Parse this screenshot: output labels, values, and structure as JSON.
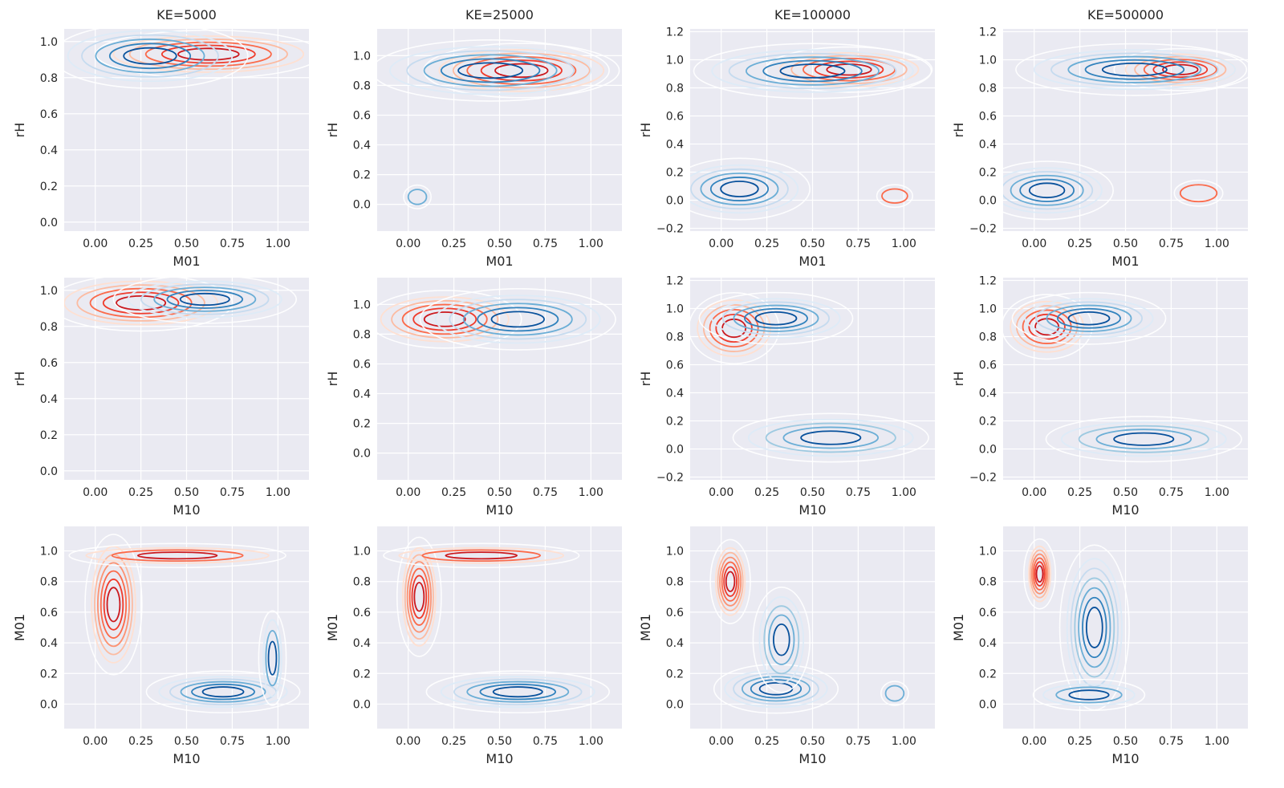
{
  "figure": {
    "facet_titles": [
      "KE=5000",
      "KE=25000",
      "KE=100000",
      "KE=500000"
    ],
    "colors": {
      "background": "#EAEAF2",
      "grid": "#FFFFFF",
      "reds": [
        "#FEE0D2",
        "#FCBBA1",
        "#FC9272",
        "#FB6A4A",
        "#EF3B2C",
        "#CB181D"
      ],
      "blues": [
        "#DEEBF7",
        "#C6DBEF",
        "#9ECAE1",
        "#6BAED6",
        "#3182BD",
        "#08519C"
      ]
    }
  },
  "chart_data": [
    {
      "type": "kde_contour",
      "row": 0,
      "col": 0,
      "title": "KE=5000",
      "xlabel": "M01",
      "ylabel": "rH",
      "xlim": [
        -0.17,
        1.17
      ],
      "ylim": [
        -0.05,
        1.07
      ],
      "xticks": [
        "0.00",
        "0.25",
        "0.50",
        "0.75",
        "1.00"
      ],
      "yticks": [
        "0.0",
        "0.2",
        "0.4",
        "0.6",
        "0.8",
        "1.0"
      ],
      "series": [
        {
          "color": "reds",
          "cx": 0.62,
          "cy": 0.93,
          "rx": 0.52,
          "ry": 0.1,
          "levels": 5
        },
        {
          "color": "blues",
          "cx": 0.3,
          "cy": 0.92,
          "rx": 0.45,
          "ry": 0.14,
          "levels": 5
        }
      ]
    },
    {
      "type": "kde_contour",
      "row": 0,
      "col": 1,
      "title": "KE=25000",
      "xlabel": "M01",
      "ylabel": "rH",
      "xlim": [
        -0.17,
        1.17
      ],
      "ylim": [
        -0.18,
        1.18
      ],
      "xticks": [
        "0.00",
        "0.25",
        "0.50",
        "0.75",
        "1.00"
      ],
      "yticks": [
        "0.0",
        "0.2",
        "0.4",
        "0.6",
        "0.8",
        "1.0"
      ],
      "series": [
        {
          "color": "reds",
          "cx": 0.62,
          "cy": 0.9,
          "rx": 0.45,
          "ry": 0.14,
          "levels": 5
        },
        {
          "color": "blues",
          "cx": 0.45,
          "cy": 0.9,
          "rx": 0.55,
          "ry": 0.16,
          "levels": 5
        },
        {
          "color": "blues",
          "cx": 0.05,
          "cy": 0.05,
          "rx": 0.05,
          "ry": 0.05,
          "levels": 1
        }
      ]
    },
    {
      "type": "kde_contour",
      "row": 0,
      "col": 2,
      "title": "KE=100000",
      "xlabel": "M01",
      "ylabel": "rH",
      "xlim": [
        -0.17,
        1.17
      ],
      "ylim": [
        -0.22,
        1.22
      ],
      "xticks": [
        "0.00",
        "0.25",
        "0.50",
        "0.75",
        "1.00"
      ],
      "yticks": [
        "−0.2",
        "0.0",
        "0.2",
        "0.4",
        "0.6",
        "0.8",
        "1.0",
        "1.2"
      ],
      "series": [
        {
          "color": "reds",
          "cx": 0.7,
          "cy": 0.93,
          "rx": 0.38,
          "ry": 0.12,
          "levels": 5
        },
        {
          "color": "blues",
          "cx": 0.5,
          "cy": 0.92,
          "rx": 0.55,
          "ry": 0.15,
          "levels": 5
        },
        {
          "color": "blues",
          "cx": 0.1,
          "cy": 0.08,
          "rx": 0.32,
          "ry": 0.17,
          "levels": 5
        },
        {
          "color": "reds",
          "cx": 0.95,
          "cy": 0.03,
          "rx": 0.07,
          "ry": 0.05,
          "levels": 1
        }
      ]
    },
    {
      "type": "kde_contour",
      "row": 0,
      "col": 3,
      "title": "KE=500000",
      "xlabel": "M01",
      "ylabel": "rH",
      "xlim": [
        -0.17,
        1.17
      ],
      "ylim": [
        -0.22,
        1.22
      ],
      "xticks": [
        "0.00",
        "0.25",
        "0.50",
        "0.75",
        "1.00"
      ],
      "yticks": [
        "−0.2",
        "0.0",
        "0.2",
        "0.4",
        "0.6",
        "0.8",
        "1.0",
        "1.2"
      ],
      "series": [
        {
          "color": "reds",
          "cx": 0.8,
          "cy": 0.93,
          "rx": 0.3,
          "ry": 0.11,
          "levels": 5
        },
        {
          "color": "blues",
          "cx": 0.55,
          "cy": 0.93,
          "rx": 0.55,
          "ry": 0.14,
          "levels": 5
        },
        {
          "color": "blues",
          "cx": 0.07,
          "cy": 0.07,
          "rx": 0.3,
          "ry": 0.16,
          "levels": 5
        },
        {
          "color": "reds",
          "cx": 0.9,
          "cy": 0.05,
          "rx": 0.1,
          "ry": 0.06,
          "levels": 1
        }
      ]
    },
    {
      "type": "kde_contour",
      "row": 1,
      "col": 0,
      "title": "",
      "xlabel": "M10",
      "ylabel": "rH",
      "xlim": [
        -0.17,
        1.17
      ],
      "ylim": [
        -0.05,
        1.07
      ],
      "xticks": [
        "0.00",
        "0.25",
        "0.50",
        "0.75",
        "1.00"
      ],
      "yticks": [
        "0.0",
        "0.2",
        "0.4",
        "0.6",
        "0.8",
        "1.0"
      ],
      "series": [
        {
          "color": "reds",
          "cx": 0.25,
          "cy": 0.93,
          "rx": 0.42,
          "ry": 0.12,
          "levels": 5
        },
        {
          "color": "blues",
          "cx": 0.6,
          "cy": 0.95,
          "rx": 0.42,
          "ry": 0.1,
          "levels": 5
        }
      ]
    },
    {
      "type": "kde_contour",
      "row": 1,
      "col": 1,
      "title": "",
      "xlabel": "M10",
      "ylabel": "rH",
      "xlim": [
        -0.17,
        1.17
      ],
      "ylim": [
        -0.18,
        1.18
      ],
      "xticks": [
        "0.00",
        "0.25",
        "0.50",
        "0.75",
        "1.00"
      ],
      "yticks": [
        "0.0",
        "0.2",
        "0.4",
        "0.6",
        "0.8",
        "1.0"
      ],
      "series": [
        {
          "color": "reds",
          "cx": 0.2,
          "cy": 0.9,
          "rx": 0.35,
          "ry": 0.15,
          "levels": 5
        },
        {
          "color": "blues",
          "cx": 0.6,
          "cy": 0.9,
          "rx": 0.45,
          "ry": 0.16,
          "levels": 5
        }
      ]
    },
    {
      "type": "kde_contour",
      "row": 1,
      "col": 2,
      "title": "",
      "xlabel": "M10",
      "ylabel": "rH",
      "xlim": [
        -0.17,
        1.17
      ],
      "ylim": [
        -0.22,
        1.22
      ],
      "xticks": [
        "0.00",
        "0.25",
        "0.50",
        "0.75",
        "1.00"
      ],
      "yticks": [
        "−0.2",
        "0.0",
        "0.2",
        "0.4",
        "0.6",
        "0.8",
        "1.0",
        "1.2"
      ],
      "series": [
        {
          "color": "reds",
          "cx": 0.07,
          "cy": 0.86,
          "rx": 0.2,
          "ry": 0.2,
          "levels": 5
        },
        {
          "color": "blues",
          "cx": 0.3,
          "cy": 0.93,
          "rx": 0.35,
          "ry": 0.14,
          "levels": 5
        },
        {
          "color": "blues",
          "cx": 0.6,
          "cy": 0.08,
          "rx": 0.45,
          "ry": 0.13,
          "levels": 4
        }
      ]
    },
    {
      "type": "kde_contour",
      "row": 1,
      "col": 3,
      "title": "",
      "xlabel": "M10",
      "ylabel": "rH",
      "xlim": [
        -0.17,
        1.17
      ],
      "ylim": [
        -0.22,
        1.22
      ],
      "xticks": [
        "0.00",
        "0.25",
        "0.50",
        "0.75",
        "1.00"
      ],
      "yticks": [
        "−0.2",
        "0.0",
        "0.2",
        "0.4",
        "0.6",
        "0.8",
        "1.0",
        "1.2"
      ],
      "series": [
        {
          "color": "reds",
          "cx": 0.07,
          "cy": 0.87,
          "rx": 0.2,
          "ry": 0.18,
          "levels": 5
        },
        {
          "color": "blues",
          "cx": 0.3,
          "cy": 0.93,
          "rx": 0.35,
          "ry": 0.14,
          "levels": 5
        },
        {
          "color": "blues",
          "cx": 0.6,
          "cy": 0.07,
          "rx": 0.45,
          "ry": 0.12,
          "levels": 4
        }
      ]
    },
    {
      "type": "kde_contour",
      "row": 2,
      "col": 0,
      "title": "",
      "xlabel": "M10",
      "ylabel": "M01",
      "xlim": [
        -0.17,
        1.17
      ],
      "ylim": [
        -0.16,
        1.16
      ],
      "xticks": [
        "0.00",
        "0.25",
        "0.50",
        "0.75",
        "1.00"
      ],
      "yticks": [
        "0.0",
        "0.2",
        "0.4",
        "0.6",
        "0.8",
        "1.0"
      ],
      "series": [
        {
          "color": "reds",
          "cx": 0.1,
          "cy": 0.65,
          "rx": 0.12,
          "ry": 0.38,
          "levels": 6
        },
        {
          "color": "reds",
          "cx": 0.45,
          "cy": 0.97,
          "rx": 0.5,
          "ry": 0.05,
          "levels": 3
        },
        {
          "color": "blues",
          "cx": 0.7,
          "cy": 0.08,
          "rx": 0.35,
          "ry": 0.1,
          "levels": 5
        },
        {
          "color": "blues",
          "cx": 0.97,
          "cy": 0.3,
          "rx": 0.05,
          "ry": 0.25,
          "levels": 3
        }
      ]
    },
    {
      "type": "kde_contour",
      "row": 2,
      "col": 1,
      "title": "",
      "xlabel": "M10",
      "ylabel": "M01",
      "xlim": [
        -0.17,
        1.17
      ],
      "ylim": [
        -0.16,
        1.16
      ],
      "xticks": [
        "0.00",
        "0.25",
        "0.50",
        "0.75",
        "1.00"
      ],
      "yticks": [
        "0.0",
        "0.2",
        "0.4",
        "0.6",
        "0.8",
        "1.0"
      ],
      "series": [
        {
          "color": "reds",
          "cx": 0.06,
          "cy": 0.7,
          "rx": 0.09,
          "ry": 0.32,
          "levels": 6
        },
        {
          "color": "reds",
          "cx": 0.4,
          "cy": 0.97,
          "rx": 0.45,
          "ry": 0.05,
          "levels": 3
        },
        {
          "color": "blues",
          "cx": 0.6,
          "cy": 0.08,
          "rx": 0.42,
          "ry": 0.1,
          "levels": 5
        }
      ]
    },
    {
      "type": "kde_contour",
      "row": 2,
      "col": 2,
      "title": "",
      "xlabel": "M10",
      "ylabel": "M01",
      "xlim": [
        -0.17,
        1.17
      ],
      "ylim": [
        -0.16,
        1.16
      ],
      "xticks": [
        "0.00",
        "0.25",
        "0.50",
        "0.75",
        "1.00"
      ],
      "yticks": [
        "0.0",
        "0.2",
        "0.4",
        "0.6",
        "0.8",
        "1.0"
      ],
      "series": [
        {
          "color": "reds",
          "cx": 0.05,
          "cy": 0.8,
          "rx": 0.08,
          "ry": 0.22,
          "levels": 6
        },
        {
          "color": "blues",
          "cx": 0.3,
          "cy": 0.1,
          "rx": 0.28,
          "ry": 0.12,
          "levels": 5
        },
        {
          "color": "blues",
          "cx": 0.33,
          "cy": 0.42,
          "rx": 0.12,
          "ry": 0.28,
          "levels": 4
        },
        {
          "color": "blues",
          "cx": 0.95,
          "cy": 0.07,
          "rx": 0.05,
          "ry": 0.05,
          "levels": 1
        }
      ]
    },
    {
      "type": "kde_contour",
      "row": 2,
      "col": 3,
      "title": "",
      "xlabel": "M10",
      "ylabel": "M01",
      "xlim": [
        -0.17,
        1.17
      ],
      "ylim": [
        -0.16,
        1.16
      ],
      "xticks": [
        "0.00",
        "0.25",
        "0.50",
        "0.75",
        "1.00"
      ],
      "yticks": [
        "0.0",
        "0.2",
        "0.4",
        "0.6",
        "0.8",
        "1.0"
      ],
      "series": [
        {
          "color": "reds",
          "cx": 0.03,
          "cy": 0.85,
          "rx": 0.06,
          "ry": 0.18,
          "levels": 6
        },
        {
          "color": "blues",
          "cx": 0.33,
          "cy": 0.5,
          "rx": 0.15,
          "ry": 0.45,
          "levels": 6
        },
        {
          "color": "blues",
          "cx": 0.3,
          "cy": 0.06,
          "rx": 0.25,
          "ry": 0.07,
          "levels": 3
        }
      ]
    }
  ]
}
